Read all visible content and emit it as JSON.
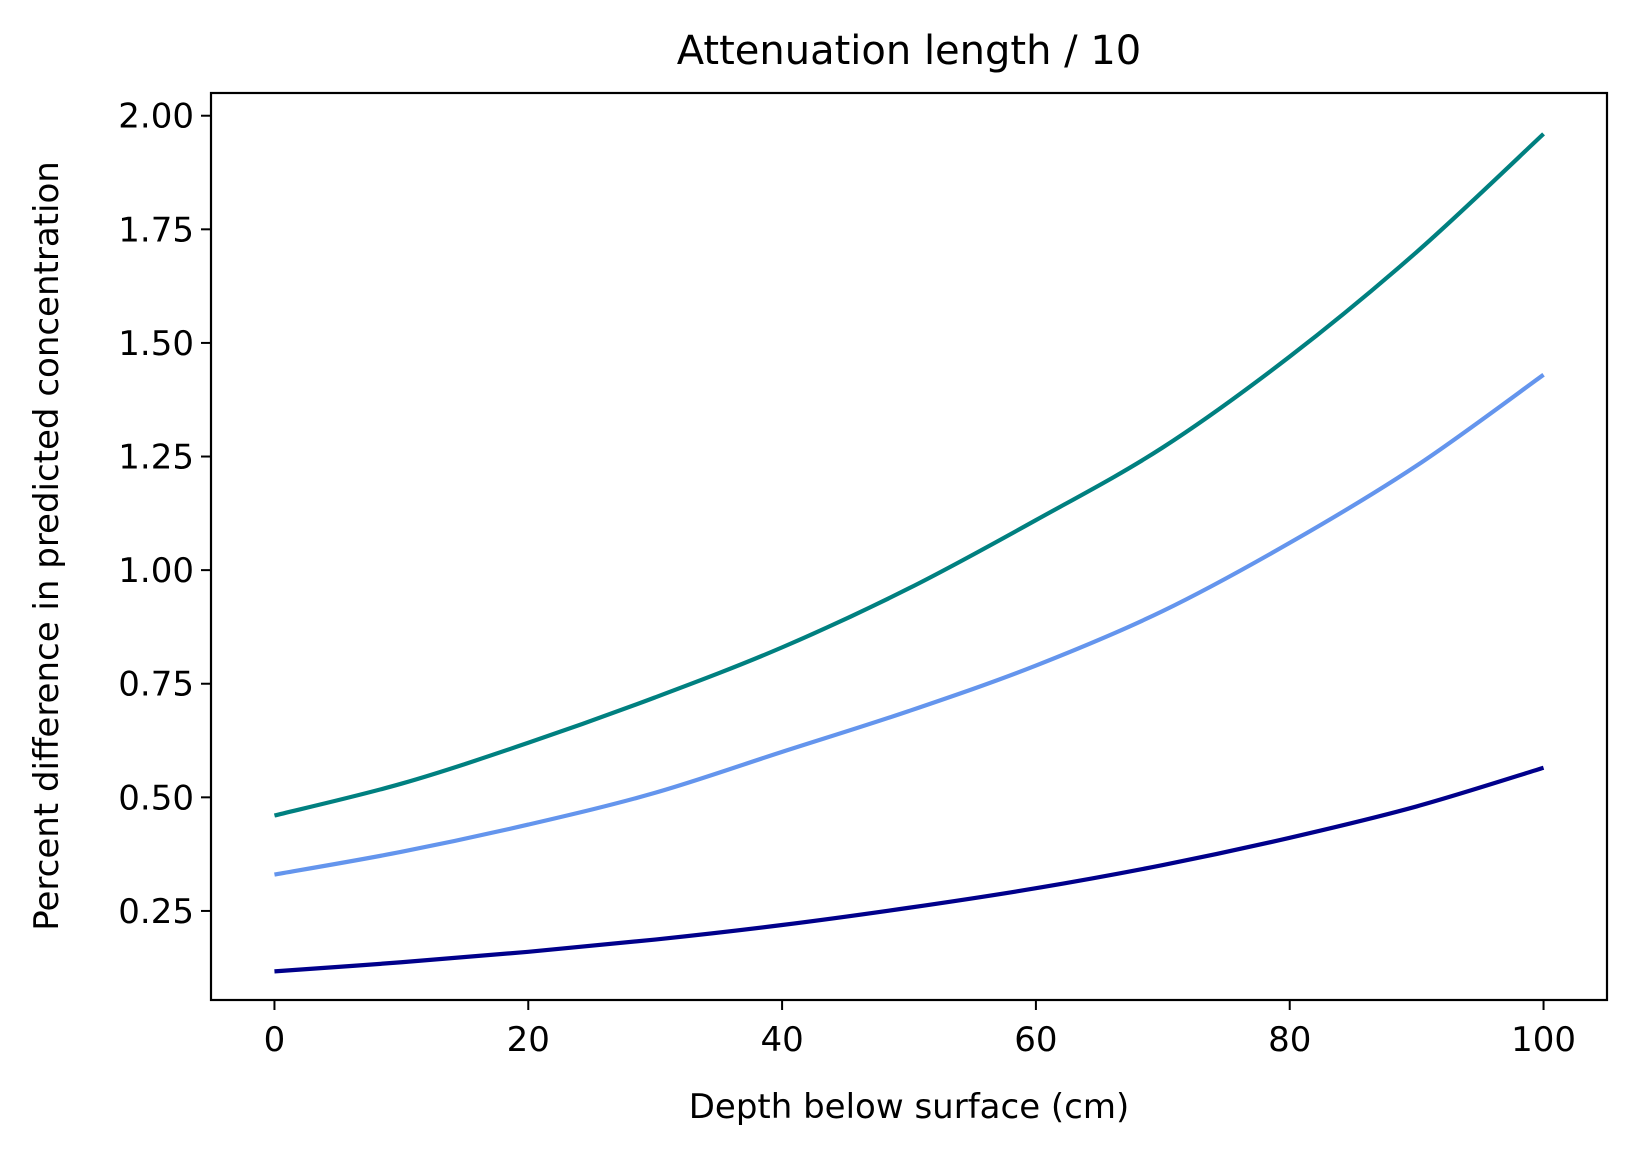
{
  "chart_data": {
    "type": "line",
    "title": "Attenuation length / 10",
    "xlabel": "Depth below surface (cm)",
    "ylabel": "Percent difference in predicted concentration",
    "xlim": [
      -5,
      105
    ],
    "ylim": [
      0.054,
      2.05
    ],
    "x_ticks": [
      0,
      20,
      40,
      60,
      80,
      100
    ],
    "x_tick_labels": [
      "0",
      "20",
      "40",
      "60",
      "80",
      "100"
    ],
    "y_ticks": [
      0.25,
      0.5,
      0.75,
      1.0,
      1.25,
      1.5,
      1.75,
      2.0
    ],
    "y_tick_labels": [
      "0.25",
      "0.50",
      "0.75",
      "1.00",
      "1.25",
      "1.50",
      "1.75",
      "2.00"
    ],
    "grid": false,
    "legend": "none",
    "x": [
      0,
      10,
      20,
      30,
      40,
      50,
      60,
      70,
      80,
      90,
      100
    ],
    "series": [
      {
        "color": "#008080",
        "values": [
          0.46,
          0.53,
          0.62,
          0.72,
          0.83,
          0.96,
          1.11,
          1.27,
          1.47,
          1.7,
          1.96
        ]
      },
      {
        "color": "#6495ED",
        "values": [
          0.33,
          0.38,
          0.44,
          0.51,
          0.6,
          0.69,
          0.79,
          0.91,
          1.06,
          1.23,
          1.43
        ]
      },
      {
        "color": "#00008B",
        "values": [
          0.117,
          0.137,
          0.16,
          0.187,
          0.219,
          0.257,
          0.3,
          0.351,
          0.411,
          0.48,
          0.565
        ]
      }
    ]
  }
}
